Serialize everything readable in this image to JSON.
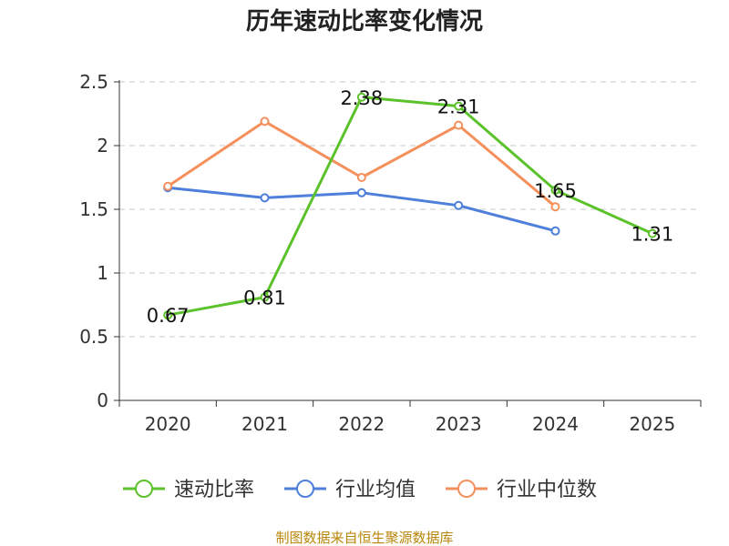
{
  "chart_data": {
    "type": "line",
    "title": "历年速动比率变化情况",
    "categories": [
      "2020",
      "2021",
      "2022",
      "2023",
      "2024",
      "2025"
    ],
    "ylim": [
      0,
      2.5
    ],
    "yticks": [
      "0",
      "0.5",
      "1",
      "1.5",
      "2",
      "2.5"
    ],
    "ytick_values": [
      0,
      0.5,
      1,
      1.5,
      2,
      2.5
    ],
    "grid": true,
    "legend_position": "bottom",
    "series": [
      {
        "name": "速动比率",
        "color": "#5cc22b",
        "values": [
          0.67,
          0.81,
          2.38,
          2.31,
          1.65,
          1.31
        ],
        "labels": [
          "0.67",
          "0.81",
          "2.38",
          "2.31",
          "1.65",
          "1.31"
        ]
      },
      {
        "name": "行业均值",
        "color": "#4e7fdb",
        "values": [
          1.67,
          1.59,
          1.63,
          1.53,
          1.33,
          null
        ]
      },
      {
        "name": "行业中位数",
        "color": "#f5905c",
        "values": [
          1.68,
          2.19,
          1.75,
          2.16,
          1.52,
          null
        ]
      }
    ]
  },
  "footer": {
    "source": "制图数据来自恒生聚源数据库",
    "color": "#b8860b"
  }
}
